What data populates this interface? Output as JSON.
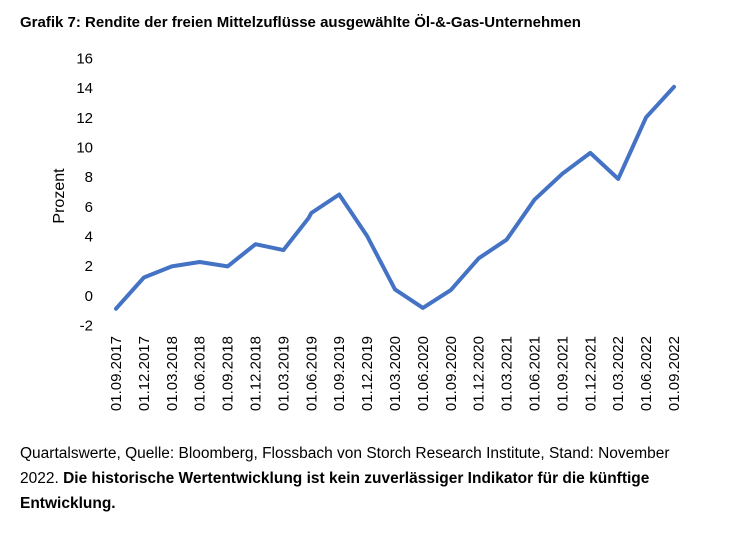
{
  "title": "Grafik 7: Rendite der freien Mittelzuflüsse ausgewählte Öl-&-Gas-Unternehmen",
  "footnote": {
    "normal": "Quartalswerte, Quelle: Bloomberg, Flossbach von Storch Research Institute, Stand: November 2022.",
    "bold": "Die historische Wertentwicklung ist kein zuverlässiger Indikator für die künftige Entwicklung."
  },
  "colors": {
    "line": "#4472C4"
  },
  "chart_data": {
    "type": "line",
    "title": "Grafik 7: Rendite der freien Mittelzuflüsse ausgewählte Öl-&-Gas-Unternehmen",
    "ylabel": "Prozent",
    "xlabel": "",
    "ylim": [
      -2,
      16
    ],
    "yticks": [
      -2,
      0,
      2,
      4,
      6,
      8,
      10,
      12,
      14,
      16
    ],
    "ytick_labels": [
      "-2",
      "0",
      "2",
      "4",
      "6",
      "8",
      "10",
      "12",
      "14",
      "16"
    ],
    "grid": false,
    "legend": "none",
    "categories": [
      "01.09.2017",
      "01.12.2017",
      "01.03.2018",
      "01.06.2018",
      "01.09.2018",
      "01.12.2018",
      "01.03.2019",
      "01.06.2019",
      "01.09.2019",
      "01.12.2019",
      "01.03.2020",
      "01.06.2020",
      "01.09.2020",
      "01.12.2020",
      "01.03.2021",
      "01.06.2021",
      "01.09.2021",
      "01.12.2021",
      "01.03.2022",
      "01.06.2022",
      "01.09.2022"
    ],
    "series": [
      {
        "points": [
          {
            "x": 0,
            "y": -0.9
          },
          {
            "x": 1,
            "y": 1.2
          },
          {
            "x": 2,
            "y": 1.95
          },
          {
            "x": 3,
            "y": 2.25
          },
          {
            "x": 4,
            "y": 1.95
          },
          {
            "x": 5,
            "y": 3.45
          },
          {
            "x": 6,
            "y": 3.05
          },
          {
            "x": 6.9,
            "y": 5.2
          },
          {
            "x": 7,
            "y": 5.55
          },
          {
            "x": 8,
            "y": 6.8
          },
          {
            "x": 9,
            "y": 4.0
          },
          {
            "x": 10,
            "y": 0.4
          },
          {
            "x": 11,
            "y": -0.85
          },
          {
            "x": 12,
            "y": 0.35
          },
          {
            "x": 13,
            "y": 2.5
          },
          {
            "x": 14,
            "y": 3.75
          },
          {
            "x": 15,
            "y": 6.45
          },
          {
            "x": 16,
            "y": 8.2
          },
          {
            "x": 17,
            "y": 9.6
          },
          {
            "x": 18,
            "y": 7.85
          },
          {
            "x": 19,
            "y": 12.0
          },
          {
            "x": 20,
            "y": 14.05
          }
        ]
      }
    ]
  }
}
